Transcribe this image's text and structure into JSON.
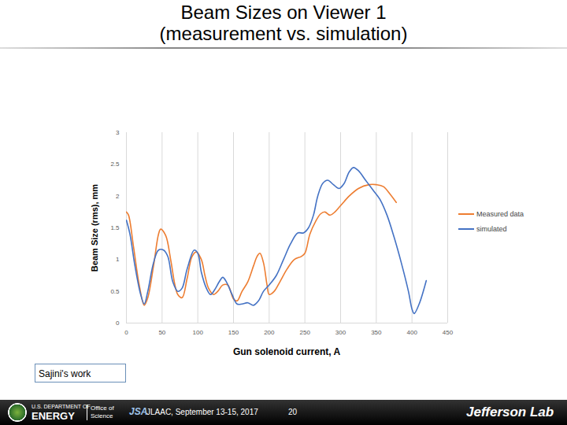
{
  "chart_data": {
    "type": "line",
    "title": "Beam Sizes on Viewer 1\n(measurement vs. simulation)",
    "x_label": "Gun solenoid current, A",
    "y_label": "Beam Size (rms), mm",
    "xlim": [
      0,
      450
    ],
    "xticks": [
      0,
      50,
      100,
      150,
      200,
      250,
      300,
      350,
      400,
      450
    ],
    "ylim": [
      0,
      3
    ],
    "yticks": [
      0,
      0.5,
      1,
      1.5,
      2,
      2.5,
      3
    ],
    "grid": "x",
    "legend": "right",
    "marker": "none",
    "series": [
      {
        "name": "Measured data",
        "color": "#ed7d31",
        "x": [
          0,
          3,
          10,
          18,
          25,
          30,
          38,
          45,
          48,
          55,
          62,
          68,
          72,
          78,
          85,
          92,
          98,
          105,
          110,
          115,
          122,
          128,
          135,
          142,
          150,
          155,
          162,
          170,
          178,
          183,
          187,
          192,
          197,
          200,
          207,
          215,
          225,
          235,
          245,
          250,
          257,
          265,
          272,
          278,
          285,
          292,
          300,
          312,
          325,
          340,
          350,
          360,
          370,
          378
        ],
        "values": [
          1.75,
          1.7,
          1.2,
          0.6,
          0.28,
          0.4,
          0.9,
          1.4,
          1.48,
          1.38,
          1.0,
          0.6,
          0.45,
          0.4,
          0.7,
          1.05,
          1.12,
          1.0,
          0.75,
          0.55,
          0.45,
          0.5,
          0.6,
          0.6,
          0.38,
          0.35,
          0.5,
          0.65,
          0.9,
          1.05,
          1.1,
          0.95,
          0.6,
          0.45,
          0.5,
          0.65,
          0.85,
          1.0,
          1.05,
          1.1,
          1.4,
          1.6,
          1.72,
          1.75,
          1.7,
          1.75,
          1.85,
          2.0,
          2.12,
          2.18,
          2.18,
          2.15,
          2.02,
          1.9
        ]
      },
      {
        "name": "simulated",
        "color": "#4472c4",
        "x": [
          0,
          5,
          12,
          20,
          25,
          30,
          38,
          45,
          52,
          58,
          65,
          72,
          78,
          85,
          95,
          100,
          105,
          112,
          118,
          125,
          130,
          135,
          140,
          148,
          155,
          162,
          170,
          178,
          185,
          192,
          200,
          210,
          220,
          230,
          240,
          248,
          255,
          262,
          268,
          275,
          282,
          290,
          298,
          305,
          312,
          318,
          325,
          335,
          345,
          355,
          365,
          375,
          385,
          395,
          400,
          403,
          410,
          420
        ],
        "values": [
          1.62,
          1.4,
          0.9,
          0.45,
          0.3,
          0.5,
          0.95,
          1.15,
          1.15,
          1.05,
          0.65,
          0.5,
          0.55,
          0.85,
          1.15,
          1.1,
          0.8,
          0.55,
          0.45,
          0.55,
          0.65,
          0.72,
          0.65,
          0.45,
          0.3,
          0.3,
          0.32,
          0.28,
          0.35,
          0.5,
          0.6,
          0.75,
          1.0,
          1.25,
          1.42,
          1.42,
          1.5,
          1.7,
          2.0,
          2.2,
          2.25,
          2.18,
          2.12,
          2.2,
          2.38,
          2.45,
          2.4,
          2.25,
          2.1,
          1.95,
          1.7,
          1.35,
          0.95,
          0.5,
          0.22,
          0.15,
          0.3,
          0.67
        ]
      }
    ]
  },
  "page": {
    "note": "Sajini's work",
    "footer": {
      "agency_top": "U.S. DEPARTMENT OF",
      "agency": "ENERGY",
      "office": "Office of\nScience",
      "jsa": "JSA",
      "event": "JLAAC, September 13-15, 2017",
      "page_number": "20",
      "lab": "Jefferson Lab"
    }
  }
}
